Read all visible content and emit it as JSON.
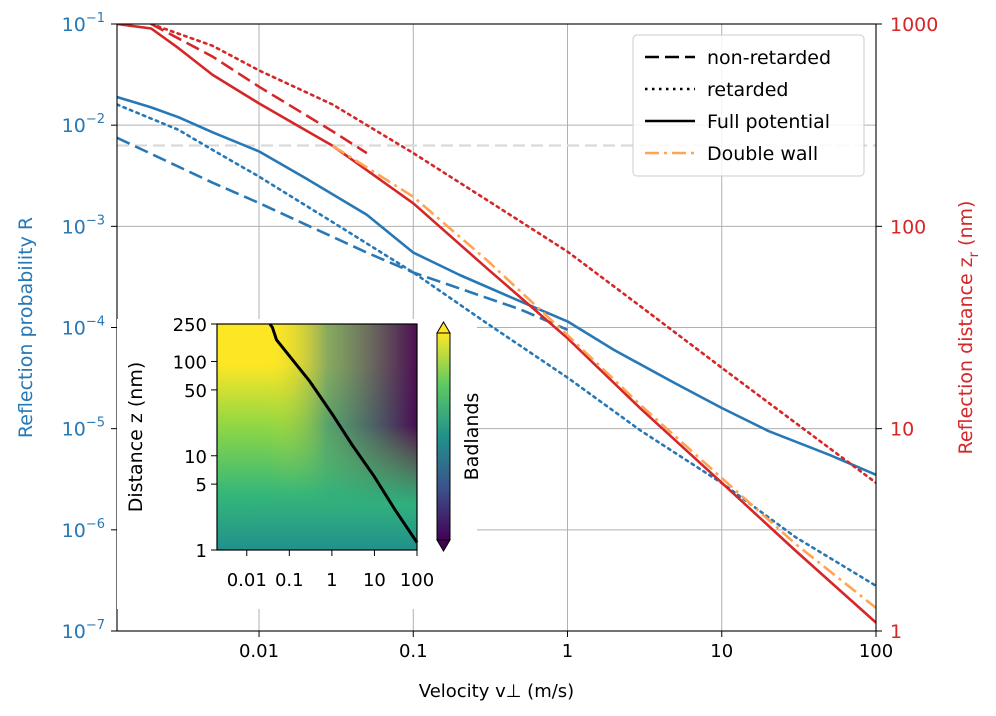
{
  "chart_data": {
    "type": "line",
    "xlabel": "Velocity v⊥ (m/s)",
    "ylabel_left": "Reflection probability R",
    "ylabel_right": "Reflection distance z",
    "ylabel_right_subscript": "r",
    "ylabel_right_units": "(nm)",
    "x_scale": "log",
    "xlim": [
      0.0012,
      100
    ],
    "y_left_scale": "log",
    "ylim_left": [
      1e-07,
      0.1
    ],
    "y_right_scale": "log",
    "ylim_right": [
      1,
      1000
    ],
    "grid": true,
    "x_ticks": [
      {
        "value": 0.01,
        "label": "0.01"
      },
      {
        "value": 0.1,
        "label": "0.1"
      },
      {
        "value": 1,
        "label": "1"
      },
      {
        "value": 10,
        "label": "10"
      },
      {
        "value": 100,
        "label": "100"
      }
    ],
    "y_left_ticks": [
      {
        "exp": -1,
        "base": "10",
        "sup": "−1"
      },
      {
        "exp": -2,
        "base": "10",
        "sup": "−2"
      },
      {
        "exp": -3,
        "base": "10",
        "sup": "−3"
      },
      {
        "exp": -4,
        "base": "10",
        "sup": "−4"
      },
      {
        "exp": -5,
        "base": "10",
        "sup": "−5"
      },
      {
        "exp": -6,
        "base": "10",
        "sup": "−6"
      },
      {
        "exp": -7,
        "base": "10",
        "sup": "−7"
      }
    ],
    "y_right_ticks": [
      {
        "value": 1000,
        "label": "1000"
      },
      {
        "value": 100,
        "label": "100"
      },
      {
        "value": 10,
        "label": "10"
      },
      {
        "value": 1,
        "label": "1"
      }
    ],
    "colors": {
      "probability": "#2878b5",
      "distance": "#d62728",
      "double_wall": "#ffa552",
      "legend_line": "#000000",
      "hline": "#d9d9d9"
    },
    "legend": {
      "placement": "top-right",
      "entries": [
        {
          "label": "non-retarded",
          "style": "dashed"
        },
        {
          "label": "retarded",
          "style": "dotted"
        },
        {
          "label": "Full potential",
          "style": "solid"
        },
        {
          "label": "Double wall",
          "style": "dashdot"
        }
      ]
    },
    "reference_line": {
      "axis": "left",
      "y": 0.0063,
      "style": "dashed"
    },
    "series": [
      {
        "axis": "left",
        "color": "probability",
        "style": "solid",
        "x": [
          0.0012,
          0.002,
          0.003,
          0.005,
          0.01,
          0.02,
          0.05,
          0.1,
          0.2,
          0.5,
          1,
          2,
          5,
          10,
          20,
          50,
          100
        ],
        "y": [
          0.019,
          0.015,
          0.012,
          0.0085,
          0.0055,
          0.003,
          0.0013,
          0.00055,
          0.00033,
          0.00018,
          0.000115,
          6e-05,
          2.8e-05,
          1.6e-05,
          9.5e-06,
          5.5e-06,
          3.5e-06
        ]
      },
      {
        "axis": "left",
        "color": "probability",
        "style": "dashed",
        "x": [
          0.0012,
          0.005,
          0.01,
          0.05,
          0.1,
          0.5,
          1
        ],
        "y": [
          0.0075,
          0.0027,
          0.0017,
          0.00055,
          0.00035,
          0.00015,
          9.5e-05
        ]
      },
      {
        "axis": "left",
        "color": "probability",
        "style": "dotted",
        "x": [
          0.0012,
          0.003,
          0.005,
          0.01,
          0.03,
          0.1,
          0.3,
          1,
          3,
          10,
          30,
          100
        ],
        "y": [
          0.016,
          0.009,
          0.0057,
          0.0031,
          0.0011,
          0.00035,
          0.00011,
          3.2e-05,
          9.5e-06,
          2.9e-06,
          8.5e-07,
          2.8e-07
        ]
      },
      {
        "axis": "right",
        "color": "distance",
        "style": "solid",
        "x": [
          0.0012,
          0.002,
          0.003,
          0.005,
          0.01,
          0.03,
          0.1,
          0.3,
          1,
          3,
          10,
          30,
          100
        ],
        "y": [
          1000,
          950,
          760,
          560,
          405,
          250,
          130,
          62,
          28,
          12.5,
          5.4,
          2.5,
          1.1
        ]
      },
      {
        "axis": "right",
        "color": "distance",
        "style": "dashed",
        "x": [
          0.002,
          0.005,
          0.01,
          0.03,
          0.05
        ],
        "y": [
          1000,
          690,
          490,
          295,
          230
        ]
      },
      {
        "axis": "right",
        "color": "distance",
        "style": "dotted",
        "x": [
          0.002,
          0.005,
          0.01,
          0.03,
          0.1,
          0.3,
          1,
          3,
          10,
          30,
          100
        ],
        "y": [
          1000,
          780,
          590,
          400,
          230,
          135,
          75,
          40,
          20,
          10.7,
          5.4
        ]
      },
      {
        "axis": "right",
        "color": "double_wall",
        "style": "dashdot",
        "x": [
          0.03,
          0.1,
          0.3,
          1,
          3,
          10,
          30,
          100
        ],
        "y": [
          250,
          140,
          68,
          29,
          13,
          5.7,
          2.7,
          1.3
        ]
      }
    ],
    "inset": {
      "type": "heatmap",
      "ylabel": "Distance z (nm)",
      "colorbar_label": "Badlands",
      "colormap": "viridis",
      "x_scale": "log",
      "xlim": [
        0.002,
        100
      ],
      "y_scale": "log",
      "ylim": [
        1,
        250
      ],
      "x_ticks": [
        {
          "value": 0.01,
          "label": "0.01"
        },
        {
          "value": 0.1,
          "label": "0.1"
        },
        {
          "value": 1,
          "label": "1"
        },
        {
          "value": 10,
          "label": "10"
        },
        {
          "value": 100,
          "label": "100"
        }
      ],
      "y_ticks": [
        {
          "value": 250,
          "label": "250"
        },
        {
          "value": 100,
          "label": "100"
        },
        {
          "value": 50,
          "label": "50"
        },
        {
          "value": 10,
          "label": "10"
        },
        {
          "value": 5,
          "label": "5"
        },
        {
          "value": 1,
          "label": "1"
        }
      ],
      "boundary": {
        "x": [
          0.035,
          0.04,
          0.05,
          0.1,
          0.3,
          1,
          3,
          10,
          30,
          100
        ],
        "y": [
          250,
          230,
          170,
          115,
          62,
          28,
          13,
          6,
          2.7,
          1.2
        ]
      }
    }
  }
}
